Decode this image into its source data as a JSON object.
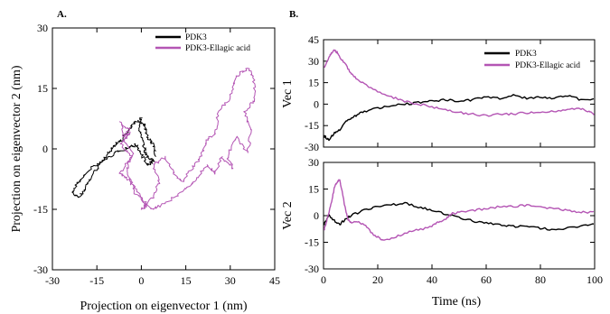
{
  "colors": {
    "pdk3": "#000000",
    "pdk3_ellagic": "#b455b4"
  },
  "chart_data": [
    {
      "type": "line",
      "panel_label": "A.",
      "xlabel": "Projection on eigenvector 1 (nm)",
      "ylabel": "Projection on eigenvector 2 (nm)",
      "xlim": [
        -30,
        45
      ],
      "ylim": [
        -30,
        30
      ],
      "xticks": [
        "-30",
        "-15",
        "0",
        "15",
        "30",
        "45"
      ],
      "yticks": [
        "30",
        "15",
        "0",
        "-15",
        "-30"
      ],
      "legend_position": "top-right",
      "grid": false,
      "series": [
        {
          "name": "PDK3",
          "color": "#000000",
          "points": [
            [
              0,
              8
            ],
            [
              -1,
              6
            ],
            [
              0,
              3
            ],
            [
              1,
              0
            ],
            [
              2,
              -2
            ],
            [
              4,
              -3
            ],
            [
              2,
              -4
            ],
            [
              0,
              -1
            ],
            [
              -2,
              1
            ],
            [
              -5,
              0
            ],
            [
              -9,
              -1
            ],
            [
              -13,
              -3
            ],
            [
              -17,
              -5
            ],
            [
              -20,
              -7
            ],
            [
              -22,
              -9
            ],
            [
              -23,
              -11
            ],
            [
              -21,
              -12
            ],
            [
              -19,
              -10
            ],
            [
              -17,
              -7
            ],
            [
              -14,
              -4
            ],
            [
              -11,
              -1
            ],
            [
              -9,
              1
            ],
            [
              -7,
              2
            ],
            [
              -5,
              4
            ],
            [
              -3,
              6
            ],
            [
              -1,
              7
            ],
            [
              1,
              6
            ],
            [
              2,
              3
            ],
            [
              4,
              1
            ],
            [
              5,
              -2
            ]
          ]
        },
        {
          "name": "PDK3-Ellagic acid",
          "color": "#b455b4",
          "points": [
            [
              -7,
              7
            ],
            [
              -6,
              3
            ],
            [
              -4,
              4
            ],
            [
              -7,
              1
            ],
            [
              -3,
              -2
            ],
            [
              -7,
              -6
            ],
            [
              -4,
              -8
            ],
            [
              -2,
              -11
            ],
            [
              2,
              -14
            ],
            [
              0,
              -15
            ],
            [
              4,
              -12
            ],
            [
              6,
              -8
            ],
            [
              4,
              -4
            ],
            [
              8,
              -2
            ],
            [
              11,
              -6
            ],
            [
              14,
              -8
            ],
            [
              17,
              -5
            ],
            [
              20,
              -2
            ],
            [
              22,
              2
            ],
            [
              25,
              4
            ],
            [
              26,
              9
            ],
            [
              30,
              13
            ],
            [
              32,
              18
            ],
            [
              36,
              20
            ],
            [
              38,
              17
            ],
            [
              38,
              12
            ],
            [
              35,
              9
            ],
            [
              37,
              5
            ],
            [
              36,
              -1
            ],
            [
              32,
              3
            ],
            [
              29,
              -2
            ],
            [
              31,
              -5
            ],
            [
              27,
              -2
            ],
            [
              25,
              -6
            ],
            [
              22,
              -4
            ],
            [
              18,
              -8
            ],
            [
              15,
              -10
            ],
            [
              11,
              -12
            ],
            [
              7,
              -14
            ],
            [
              3,
              -15
            ],
            [
              0,
              -12
            ],
            [
              -3,
              -9
            ],
            [
              -5,
              -5
            ],
            [
              -3,
              -1
            ],
            [
              -6,
              2
            ],
            [
              -4,
              5
            ],
            [
              -7,
              6
            ]
          ]
        }
      ]
    },
    {
      "type": "line",
      "panel_label": "B.",
      "ylabel": "Vec 1",
      "xlim": [
        0,
        100
      ],
      "ylim": [
        -30,
        45
      ],
      "yticks": [
        "45",
        "30",
        "15",
        "0",
        "-15",
        "-30"
      ],
      "legend_position": "top-right",
      "grid": false,
      "series": [
        {
          "name": "PDK3",
          "color": "#000000",
          "x": [
            0,
            2,
            4,
            6,
            8,
            10,
            12,
            15,
            20,
            25,
            30,
            35,
            40,
            45,
            50,
            55,
            60,
            65,
            70,
            75,
            80,
            85,
            90,
            95,
            100
          ],
          "y": [
            -22,
            -25,
            -20,
            -18,
            -12,
            -10,
            -8,
            -5,
            -3,
            -1,
            0,
            1,
            2,
            3,
            2,
            3,
            5,
            4,
            6,
            4,
            5,
            4,
            6,
            3,
            4
          ]
        },
        {
          "name": "PDK3-Ellagic acid",
          "color": "#b455b4",
          "x": [
            0,
            2,
            3,
            4,
            5,
            6,
            8,
            10,
            12,
            15,
            20,
            25,
            30,
            35,
            40,
            45,
            50,
            55,
            60,
            65,
            70,
            75,
            80,
            85,
            90,
            95,
            98,
            100
          ],
          "y": [
            25,
            32,
            36,
            38,
            36,
            33,
            28,
            22,
            18,
            14,
            9,
            5,
            2,
            0,
            -2,
            -4,
            -6,
            -7,
            -8,
            -7,
            -7,
            -6,
            -6,
            -5,
            -4,
            -3,
            -5,
            -8
          ]
        }
      ]
    },
    {
      "type": "line",
      "xlabel": "Time (ns)",
      "ylabel": "Vec 2",
      "xlim": [
        0,
        100
      ],
      "ylim": [
        -30,
        30
      ],
      "xticks": [
        "0",
        "20",
        "40",
        "60",
        "80",
        "100"
      ],
      "yticks": [
        "30",
        "15",
        "0",
        "-15",
        "-30"
      ],
      "grid": false,
      "series": [
        {
          "name": "PDK3",
          "color": "#000000",
          "x": [
            0,
            2,
            4,
            6,
            8,
            10,
            15,
            20,
            25,
            30,
            35,
            40,
            45,
            50,
            55,
            60,
            65,
            70,
            75,
            80,
            85,
            90,
            95,
            100
          ],
          "y": [
            -5,
            0,
            -3,
            -5,
            -2,
            0,
            3,
            5,
            6,
            7,
            5,
            3,
            1,
            -1,
            -3,
            -4,
            -5,
            -6,
            -6,
            -7,
            -8,
            -7,
            -6,
            -5
          ]
        },
        {
          "name": "PDK3-Ellagic acid",
          "color": "#b455b4",
          "x": [
            0,
            1,
            2,
            3,
            4,
            5,
            6,
            7,
            8,
            9,
            10,
            12,
            15,
            18,
            20,
            22,
            25,
            30,
            35,
            40,
            42,
            45,
            47,
            50,
            55,
            60,
            65,
            70,
            75,
            80,
            85,
            90,
            95,
            100
          ],
          "y": [
            -8,
            -4,
            2,
            8,
            16,
            19,
            20,
            12,
            4,
            -2,
            -4,
            -3,
            -5,
            -10,
            -12,
            -14,
            -13,
            -10,
            -8,
            -6,
            -4,
            -2,
            1,
            2,
            3,
            4,
            5,
            5,
            6,
            5,
            4,
            3,
            2,
            2
          ]
        }
      ]
    }
  ]
}
